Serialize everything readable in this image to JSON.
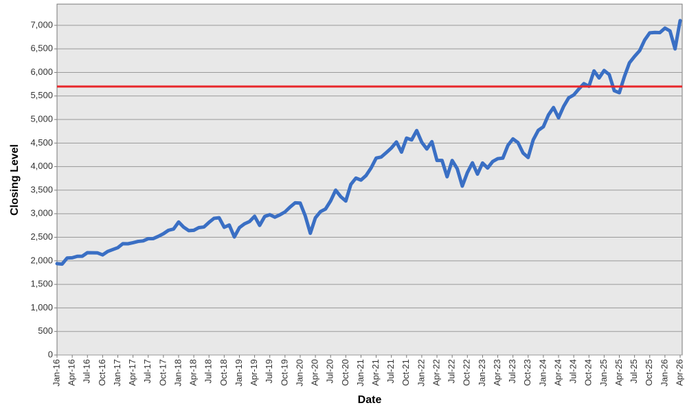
{
  "chart_data": {
    "type": "line",
    "x_label": "Date",
    "y_label": "Closing Level",
    "categories": [
      "Jan-16",
      null,
      null,
      "Apr-16",
      null,
      null,
      "Jul-16",
      null,
      null,
      "Oct-16",
      null,
      null,
      "Jan-17",
      null,
      null,
      "Apr-17",
      null,
      null,
      "Jul-17",
      null,
      null,
      "Oct-17",
      null,
      null,
      "Jan-18",
      null,
      null,
      "Apr-18",
      null,
      null,
      "Jul-18",
      null,
      null,
      "Oct-18",
      null,
      null,
      "Jan-19",
      null,
      null,
      "Apr-19",
      null,
      null,
      "Jul-19",
      null,
      null,
      "Oct-19",
      null,
      null,
      "Jan-20",
      null,
      null,
      "Apr-20",
      null,
      null,
      "Jul-20",
      null,
      null,
      "Oct-20",
      null,
      null,
      "Jan-21",
      null,
      null,
      "Apr-21",
      null,
      null,
      "Jul-21",
      null,
      null,
      "Oct-21",
      null,
      null,
      "Jan-22",
      null,
      null,
      "Apr-22",
      null,
      null,
      "Jul-22",
      null,
      null,
      "Oct-22",
      null,
      null,
      "Jan-23",
      null,
      null,
      "Apr-23",
      null,
      null,
      "Jul-23",
      null,
      null,
      "Oct-23",
      null,
      null,
      "Jan-24",
      null,
      null,
      "Apr-24",
      null,
      null,
      "Jul-24",
      null,
      null,
      "Oct-24",
      null,
      null,
      "Jan-25",
      null,
      null,
      "Apr-25",
      null,
      null,
      "Jul-25",
      null,
      null,
      "Oct-25",
      null,
      null,
      "Jan-26",
      null,
      null,
      "Apr-26"
    ],
    "values": [
      1940,
      1930,
      2060,
      2065,
      2096,
      2098,
      2173,
      2170,
      2168,
      2126,
      2199,
      2239,
      2279,
      2364,
      2362,
      2384,
      2412,
      2423,
      2470,
      2472,
      2519,
      2575,
      2648,
      2674,
      2824,
      2714,
      2641,
      2648,
      2705,
      2718,
      2816,
      2902,
      2914,
      2712,
      2760,
      2507,
      2704,
      2784,
      2834,
      2946,
      2752,
      2942,
      2980,
      2926,
      2977,
      3038,
      3141,
      3231,
      3226,
      2954,
      2585,
      2912,
      3044,
      3100,
      3271,
      3500,
      3363,
      3270,
      3622,
      3756,
      3714,
      3811,
      3973,
      4181,
      4204,
      4298,
      4395,
      4523,
      4308,
      4605,
      4567,
      4766,
      4516,
      4374,
      4530,
      4132,
      4132,
      3785,
      4130,
      3955,
      3586,
      3872,
      4080,
      3840,
      4077,
      3970,
      4109,
      4169,
      4180,
      4450,
      4589,
      4508,
      4288,
      4194,
      4568,
      4770,
      4846,
      5096,
      5254,
      5036,
      5278,
      5460,
      5522,
      5648,
      5762,
      5705,
      6032,
      5882,
      6041,
      5955,
      5612,
      5569,
      5912,
      6205,
      6339,
      6460,
      6688,
      6840,
      6849,
      6845,
      6940,
      6880,
      6500,
      7100
    ],
    "color": "#3a6fc4",
    "reference_line": {
      "value": 5700,
      "color": "#e8262a"
    },
    "ylim": [
      0,
      7450
    ],
    "yticks": [
      0,
      500,
      {
        "value": 1000,
        "label": "1,000"
      },
      {
        "value": 1500,
        "label": "1,500"
      },
      {
        "value": 2000,
        "label": "2,000"
      },
      {
        "value": 2500,
        "label": "2,500"
      },
      {
        "value": 3000,
        "label": "3,000"
      },
      {
        "value": 3500,
        "label": "3,500"
      },
      {
        "value": 4000,
        "label": "4,000"
      },
      {
        "value": 4500,
        "label": "4,500"
      },
      {
        "value": 5000,
        "label": "5,000"
      },
      {
        "value": 5500,
        "label": "5,500"
      },
      {
        "value": 6000,
        "label": "6,000"
      },
      {
        "value": 6500,
        "label": "6,500"
      },
      {
        "value": 7000,
        "label": "7,000"
      }
    ],
    "grid": true
  }
}
